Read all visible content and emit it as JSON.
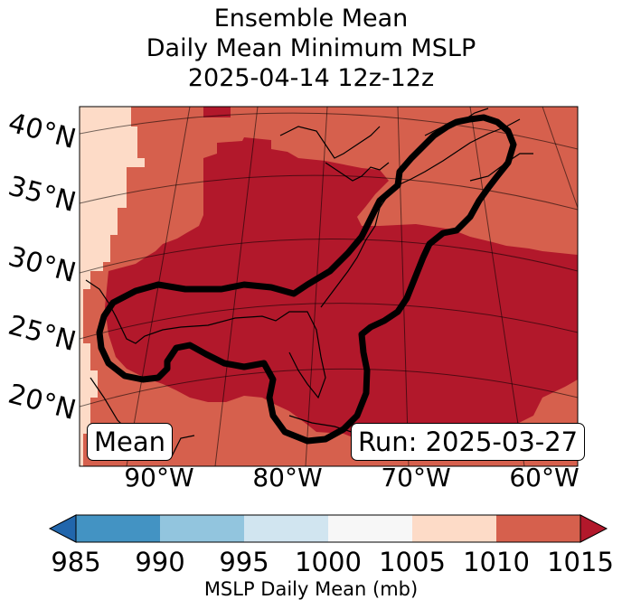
{
  "title": {
    "line1": "Ensemble Mean",
    "line2": "Daily Mean Minimum MSLP",
    "line3": "2025-04-14 12z-12z"
  },
  "map": {
    "lat_labels": [
      "40°N",
      "35°N",
      "30°N",
      "25°N",
      "20°N"
    ],
    "lon_labels": [
      "90°W",
      "80°W",
      "70°W",
      "60°W"
    ],
    "mean_box": "Mean",
    "run_box": "Run: 2025-03-27",
    "fill_colors": {
      "band_1005_1010": "#fddbc7",
      "band_1010_1015": "#d6604d",
      "band_above_1015": "#b2182b"
    },
    "contour_color": "#000000"
  },
  "colorbar": {
    "label": "MSLP Daily Mean (mb)",
    "ticks": [
      "985",
      "990",
      "995",
      "1000",
      "1005",
      "1010",
      "1015"
    ],
    "colors": [
      "#2166ac",
      "#4393c3",
      "#92c5de",
      "#d1e5f0",
      "#f7f7f7",
      "#fddbc7",
      "#d6604d",
      "#b2182b"
    ]
  }
}
